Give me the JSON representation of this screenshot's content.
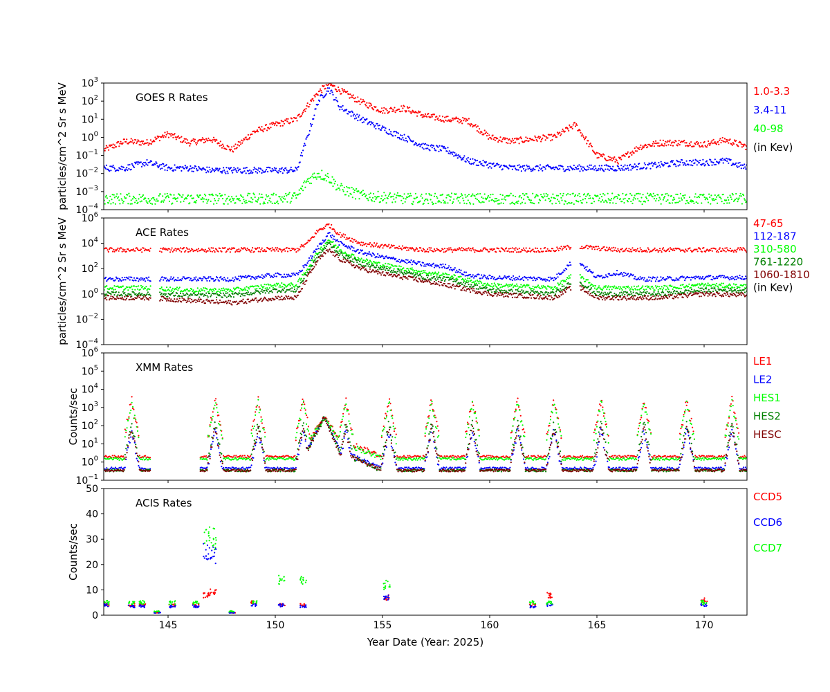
{
  "chart_data": [
    {
      "type": "scatter",
      "title": "GOES R Rates",
      "ylabel": "particles/cm^2 Sr s MeV",
      "yscale": "log",
      "ylim": [
        0.0001,
        1000
      ],
      "yticks": [
        {
          "base": "10",
          "exp": "−4"
        },
        {
          "base": "10",
          "exp": "−3"
        },
        {
          "base": "10",
          "exp": "−2"
        },
        {
          "base": "10",
          "exp": "−1"
        },
        {
          "base": "10",
          "exp": "0"
        },
        {
          "base": "10",
          "exp": "1"
        },
        {
          "base": "10",
          "exp": "2"
        },
        {
          "base": "10",
          "exp": "3"
        }
      ],
      "xlim": [
        142,
        172
      ],
      "legend_placement": "right",
      "legend_note": "(in Kev)",
      "series": [
        {
          "name": "1.0-3.3",
          "color": "#ff0000",
          "x": [
            142,
            143,
            144,
            145,
            146,
            147,
            148,
            149,
            150,
            151,
            152,
            152.5,
            153,
            154,
            155,
            156,
            157,
            158,
            159,
            160,
            161,
            162,
            163,
            164,
            165,
            166,
            167,
            168,
            169,
            170,
            171,
            172
          ],
          "y": [
            0.2,
            0.6,
            0.5,
            1.5,
            0.5,
            0.8,
            0.2,
            2,
            5,
            10,
            300,
            900,
            400,
            90,
            30,
            40,
            15,
            10,
            8,
            1,
            0.6,
            0.8,
            1,
            5,
            0.1,
            0.05,
            0.3,
            0.5,
            0.5,
            0.4,
            0.7,
            0.3
          ]
        },
        {
          "name": "3.4-11",
          "color": "#0000ff",
          "x": [
            142,
            143,
            144,
            145,
            146,
            147,
            148,
            149,
            150,
            151,
            151.5,
            152,
            152.5,
            153,
            154,
            155,
            156,
            157,
            158,
            159,
            160,
            161,
            162,
            163,
            164,
            165,
            166,
            167,
            168,
            169,
            170,
            171,
            172
          ],
          "y": [
            0.02,
            0.02,
            0.04,
            0.02,
            0.02,
            0.015,
            0.015,
            0.015,
            0.015,
            0.015,
            1,
            100,
            500,
            50,
            10,
            3,
            1,
            0.3,
            0.2,
            0.05,
            0.03,
            0.02,
            0.02,
            0.02,
            0.02,
            0.02,
            0.02,
            0.025,
            0.03,
            0.04,
            0.04,
            0.05,
            0.02
          ]
        },
        {
          "name": "40-98",
          "color": "#00ff00",
          "x": [
            142,
            144,
            146,
            148,
            150,
            151,
            151.5,
            152,
            152.5,
            153,
            154,
            156,
            158,
            160,
            162,
            164,
            166,
            168,
            170,
            172
          ],
          "y": [
            0.0004,
            0.0004,
            0.0004,
            0.0004,
            0.0004,
            0.0005,
            0.004,
            0.01,
            0.006,
            0.0015,
            0.0006,
            0.0004,
            0.0004,
            0.0004,
            0.0004,
            0.0004,
            0.0004,
            0.0004,
            0.0004,
            0.0004
          ]
        }
      ]
    },
    {
      "type": "scatter",
      "title": "ACE Rates",
      "ylabel": "particles/cm^2 Sr s MeV",
      "yscale": "log",
      "ylim": [
        0.0001,
        1000000
      ],
      "yticks": [
        {
          "base": "10",
          "exp": "−4"
        },
        {
          "base": "10",
          "exp": "−2"
        },
        {
          "base": "10",
          "exp": "0"
        },
        {
          "base": "10",
          "exp": "2"
        },
        {
          "base": "10",
          "exp": "4"
        },
        {
          "base": "10",
          "exp": "6"
        }
      ],
      "xlim": [
        142,
        172
      ],
      "legend_placement": "right",
      "legend_note": "(in Kev)",
      "series": [
        {
          "name": "47-65",
          "color": "#ff0000",
          "x": [
            142,
            144,
            146,
            148,
            150,
            151,
            151.5,
            152,
            152.5,
            153,
            154,
            155,
            156,
            157,
            160,
            163,
            164,
            165,
            166,
            168,
            170,
            172
          ],
          "y": [
            3000,
            3000,
            3000,
            3000,
            3000,
            3000,
            10000,
            100000,
            300000,
            50000,
            10000,
            6000,
            4000,
            3000,
            3000,
            3000,
            6000,
            4000,
            3000,
            3000,
            3000,
            3000
          ]
        },
        {
          "name": "112-187",
          "color": "#0000ff",
          "x": [
            142,
            144,
            146,
            148,
            150,
            151,
            151.5,
            152,
            152.5,
            153,
            154,
            155,
            156,
            157,
            158,
            159,
            160,
            163,
            164,
            165,
            166,
            167,
            168,
            170,
            172
          ],
          "y": [
            15,
            15,
            15,
            15,
            30,
            30,
            300,
            5000,
            60000,
            10000,
            2000,
            800,
            400,
            200,
            150,
            30,
            20,
            15,
            600,
            20,
            50,
            15,
            15,
            20,
            20
          ]
        },
        {
          "name": "310-580",
          "color": "#00ff00",
          "x": [
            142,
            144,
            146,
            148,
            150,
            151,
            151.5,
            152,
            152.5,
            153,
            154,
            155,
            156,
            157,
            158,
            160,
            163,
            164,
            165,
            166,
            167,
            168,
            170,
            172
          ],
          "y": [
            3,
            3,
            2,
            2,
            5,
            5,
            100,
            2000,
            20000,
            3000,
            500,
            200,
            100,
            50,
            30,
            5,
            3,
            40,
            3,
            3,
            3,
            3,
            5,
            4
          ]
        },
        {
          "name": "761-1220",
          "color": "#008000",
          "x": [
            142,
            144,
            146,
            148,
            150,
            151,
            151.5,
            152,
            152.5,
            153,
            154,
            155,
            156,
            157,
            158,
            160,
            163,
            164,
            165,
            166,
            167,
            168,
            170,
            172
          ],
          "y": [
            1,
            1,
            0.8,
            0.8,
            2,
            2,
            50,
            1000,
            10000,
            1500,
            250,
            100,
            50,
            20,
            15,
            2,
            1,
            15,
            1,
            1,
            1,
            1,
            2,
            2
          ]
        },
        {
          "name": "1060-1810",
          "color": "#800000",
          "x": [
            142,
            144,
            146,
            148,
            150,
            151,
            151.5,
            152,
            152.5,
            153,
            154,
            155,
            156,
            157,
            158,
            160,
            163,
            164,
            165,
            166,
            167,
            168,
            170,
            172
          ],
          "y": [
            0.5,
            0.5,
            0.3,
            0.2,
            0.5,
            0.5,
            20,
            500,
            3000,
            600,
            100,
            40,
            20,
            10,
            5,
            1,
            0.5,
            5,
            0.5,
            0.5,
            0.5,
            0.5,
            1,
            0.8
          ]
        }
      ]
    },
    {
      "type": "scatter",
      "title": "XMM Rates",
      "ylabel": "Counts/sec",
      "yscale": "log",
      "ylim": [
        0.1,
        1000000
      ],
      "yticks": [
        {
          "base": "10",
          "exp": "−1"
        },
        {
          "base": "10",
          "exp": "0"
        },
        {
          "base": "10",
          "exp": "1"
        },
        {
          "base": "10",
          "exp": "2"
        },
        {
          "base": "10",
          "exp": "3"
        },
        {
          "base": "10",
          "exp": "4"
        },
        {
          "base": "10",
          "exp": "5"
        },
        {
          "base": "10",
          "exp": "6"
        }
      ],
      "xlim": [
        142,
        172
      ],
      "legend_placement": "right",
      "peaks": [
        143.3,
        147.2,
        149.2,
        151.3,
        153.3,
        155.3,
        157.3,
        159.2,
        161.3,
        163.0,
        165.2,
        167.2,
        169.2,
        171.3
      ],
      "series": [
        {
          "name": "LE1",
          "color": "#ff0000",
          "baseline": 2,
          "peak": 3000
        },
        {
          "name": "LE2",
          "color": "#0000ff",
          "baseline": 0.45,
          "peak": 60
        },
        {
          "name": "HES1",
          "color": "#00ff00",
          "baseline": 1.5,
          "peak": 2000
        },
        {
          "name": "HES2",
          "color": "#008000",
          "baseline": 0.35,
          "peak": 150
        },
        {
          "name": "HESC",
          "color": "#800000",
          "baseline": 0.35,
          "peak": 80
        }
      ]
    },
    {
      "type": "scatter",
      "title": "ACIS Rates",
      "ylabel": "Counts/sec",
      "xlabel": "Year Date (Year: 2025)",
      "yscale": "linear",
      "ylim": [
        0,
        50
      ],
      "yticks": [
        "0",
        "10",
        "20",
        "30",
        "40",
        "50"
      ],
      "xlim": [
        142,
        172
      ],
      "xticks": [
        "145",
        "150",
        "155",
        "160",
        "165",
        "170"
      ],
      "legend_placement": "right",
      "series": [
        {
          "name": "CCD5",
          "color": "#ff0000",
          "x": [
            142.1,
            143.3,
            143.8,
            144.5,
            145.2,
            146.3,
            146.8,
            147.1,
            148,
            149,
            150.3,
            151.3,
            155.2,
            162,
            162.8,
            170
          ],
          "y": [
            4,
            4,
            4,
            1,
            4,
            4,
            8,
            9,
            1,
            5,
            4,
            4,
            7,
            4,
            8,
            6
          ]
        },
        {
          "name": "CCD6",
          "color": "#0000ff",
          "x": [
            142.1,
            143.3,
            143.8,
            144.5,
            145.2,
            146.3,
            146.8,
            147.1,
            148,
            149,
            150.3,
            151.3,
            155.2,
            162,
            162.8,
            170
          ],
          "y": [
            4,
            3.5,
            3.5,
            1,
            3.5,
            3.5,
            25,
            24,
            1,
            4,
            4,
            3.5,
            7,
            3.5,
            4,
            4
          ]
        },
        {
          "name": "CCD7",
          "color": "#00ff00",
          "x": [
            142.1,
            143.3,
            143.8,
            144.5,
            145.2,
            146.3,
            146.8,
            147.1,
            148,
            149,
            150.3,
            151.3,
            155.2,
            162,
            162.8,
            170
          ],
          "y": [
            5,
            5,
            5,
            1.5,
            5,
            5,
            31,
            30,
            1.5,
            5,
            14,
            14,
            12,
            5,
            5,
            5
          ]
        }
      ]
    }
  ]
}
